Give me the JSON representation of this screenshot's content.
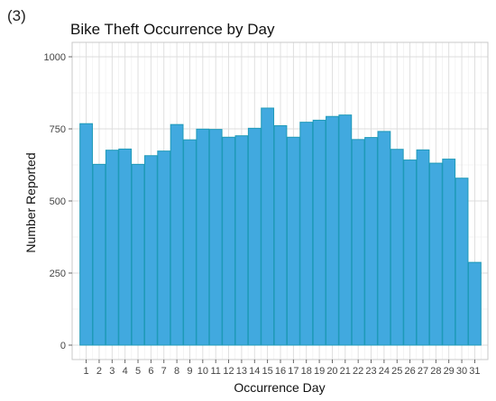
{
  "figure": {
    "panel_label": "(3)"
  },
  "chart_data": {
    "type": "bar",
    "title": "Bike Theft Occurrence by Day",
    "xlabel": "Occurrence Day",
    "ylabel": "Number Reported",
    "categories": [
      "1",
      "2",
      "3",
      "4",
      "5",
      "6",
      "7",
      "8",
      "9",
      "10",
      "11",
      "12",
      "13",
      "14",
      "15",
      "16",
      "17",
      "18",
      "19",
      "20",
      "21",
      "22",
      "23",
      "24",
      "25",
      "26",
      "27",
      "28",
      "29",
      "30",
      "31"
    ],
    "values": [
      768,
      627,
      676,
      680,
      627,
      657,
      673,
      765,
      712,
      749,
      748,
      721,
      726,
      752,
      822,
      761,
      721,
      773,
      780,
      793,
      798,
      713,
      720,
      741,
      679,
      642,
      677,
      631,
      645,
      579,
      287
    ],
    "ylim": [
      0,
      1000
    ],
    "yticks": [
      0,
      250,
      500,
      750,
      1000
    ],
    "grid": true,
    "bar_color": "#41a9df",
    "bar_outline_color": "#1f9ab8"
  }
}
